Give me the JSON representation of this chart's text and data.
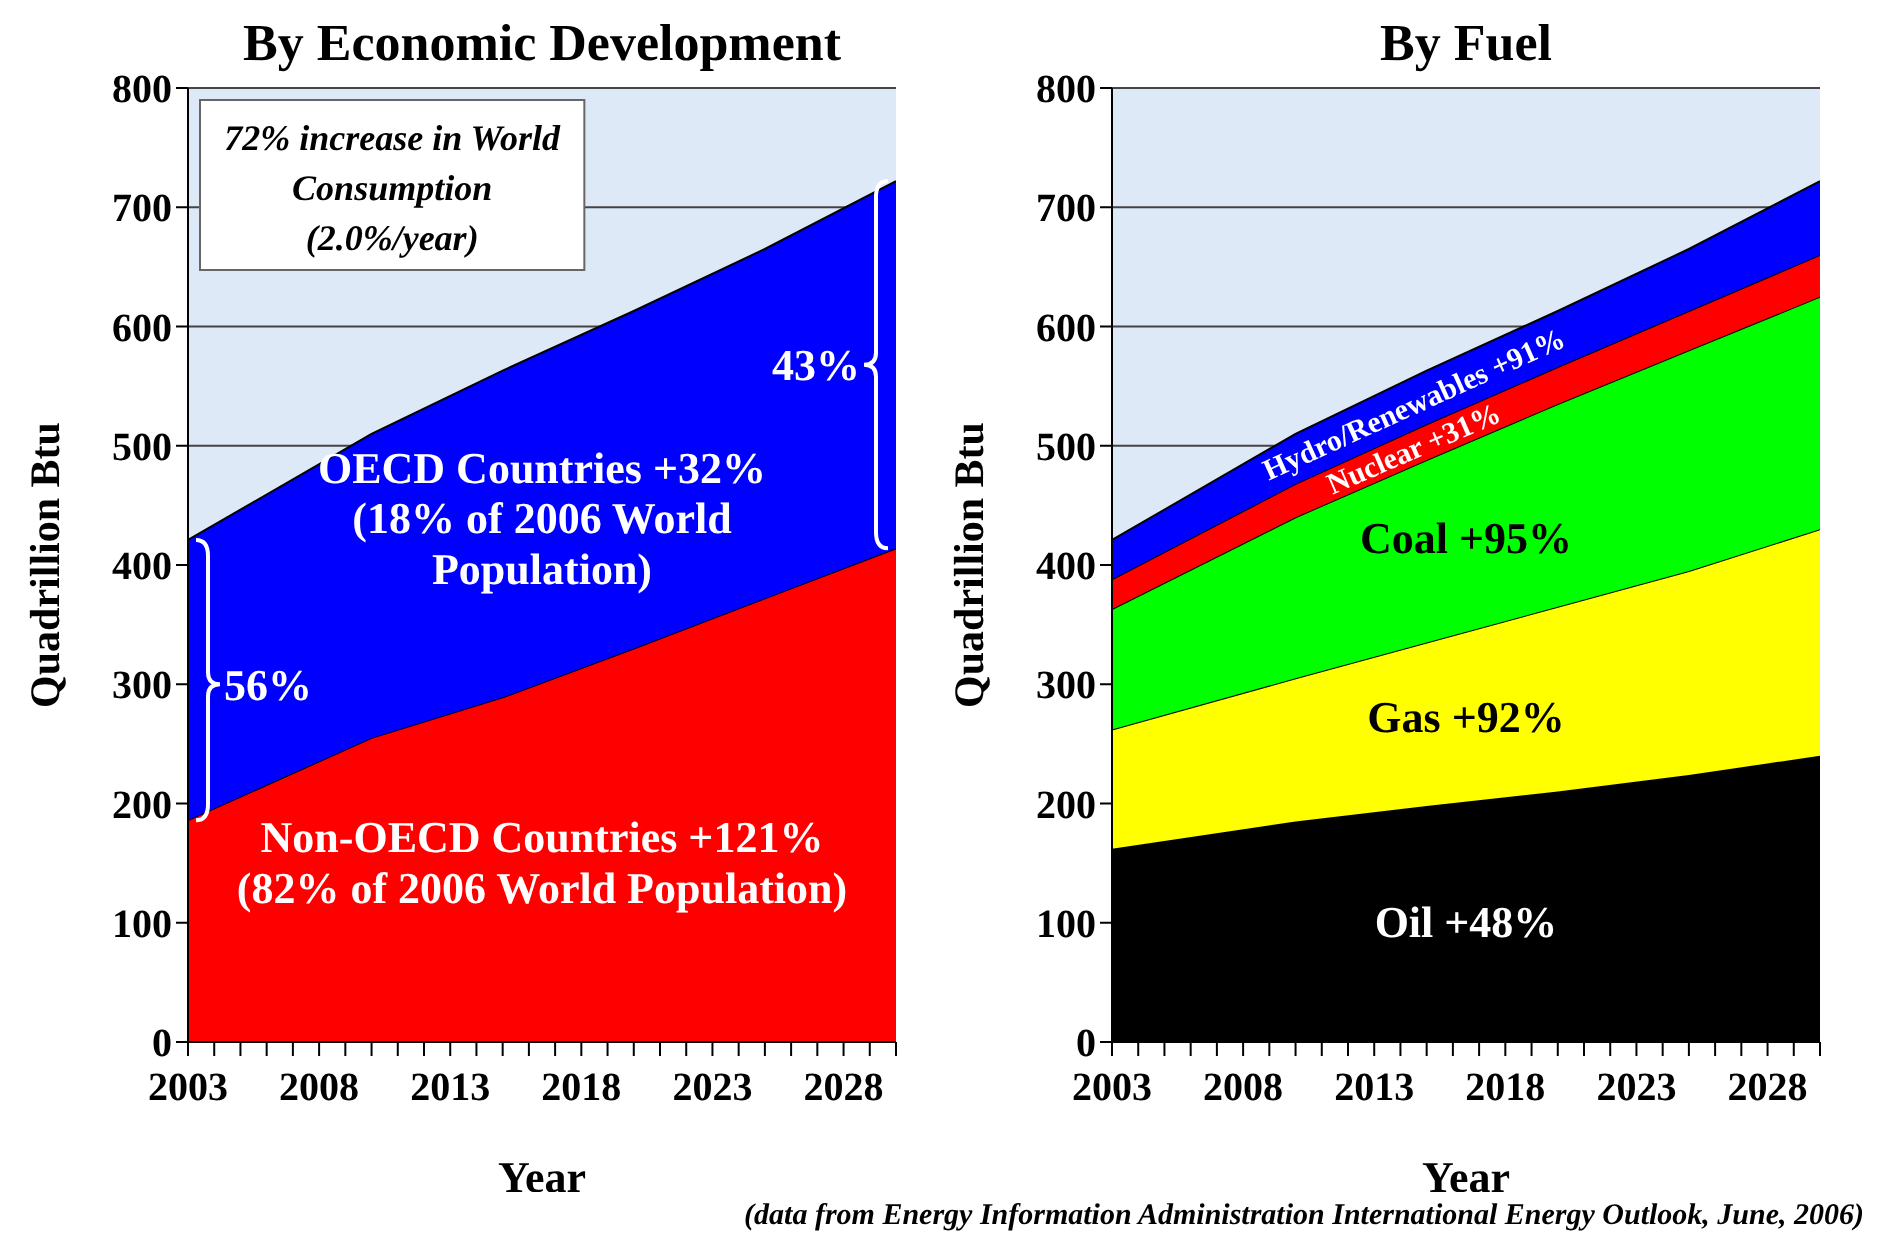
{
  "chart_data": [
    {
      "type": "area",
      "stacked": true,
      "title": "By Economic Development",
      "xlabel": "Year",
      "ylabel": "Quadrillion Btu",
      "x": [
        2003,
        2010,
        2015,
        2020,
        2025,
        2030
      ],
      "series": [
        {
          "name": "Non-OECD Countries +121% (82% of 2006 World Population)",
          "color": "#ff0000",
          "values": [
            186,
            255,
            289,
            330,
            372,
            414
          ]
        },
        {
          "name": "OECD Countries +32% (18% of 2006 World Population)",
          "color": "#0000ff",
          "values": [
            235,
            255,
            274,
            283,
            293,
            308
          ]
        }
      ],
      "xlim": [
        2003,
        2030
      ],
      "xticks": [
        2003,
        {
          "value": 2004,
          "label": null
        },
        {
          "value": 2005,
          "label": null
        },
        {
          "value": 2006,
          "label": null
        },
        {
          "value": 2007,
          "label": null
        },
        2008,
        {
          "value": 2009,
          "label": null
        },
        {
          "value": 2010,
          "label": null
        },
        {
          "value": 2011,
          "label": null
        },
        {
          "value": 2012,
          "label": null
        },
        2013,
        {
          "value": 2014,
          "label": null
        },
        {
          "value": 2015,
          "label": null
        },
        {
          "value": 2016,
          "label": null
        },
        {
          "value": 2017,
          "label": null
        },
        2018,
        {
          "value": 2019,
          "label": null
        },
        {
          "value": 2020,
          "label": null
        },
        {
          "value": 2021,
          "label": null
        },
        {
          "value": 2022,
          "label": null
        },
        2023,
        {
          "value": 2024,
          "label": null
        },
        {
          "value": 2025,
          "label": null
        },
        {
          "value": 2026,
          "label": null
        },
        {
          "value": 2027,
          "label": null
        },
        2028,
        {
          "value": 2029,
          "label": null
        },
        {
          "value": 2030,
          "label": null
        }
      ],
      "ylim": [
        0,
        800
      ],
      "yticks": [
        0,
        100,
        200,
        300,
        400,
        500,
        600,
        700,
        800
      ],
      "grid": "y",
      "legend": false,
      "annotations": [
        "72% increase in World Consumption (2.0%/year)",
        {
          "text": "56%",
          "x": 2003,
          "y": 300
        },
        {
          "text": "43%",
          "x": 2030,
          "y": 568
        }
      ]
    },
    {
      "type": "area",
      "stacked": true,
      "title": "By Fuel",
      "xlabel": "Year",
      "ylabel": "Quadrillion Btu",
      "x": [
        2003,
        2010,
        2015,
        2020,
        2025,
        2030
      ],
      "series": [
        {
          "name": "Oil +48%",
          "color": "#000000",
          "values": [
            162,
            185,
            198,
            210,
            224,
            240
          ]
        },
        {
          "name": "Gas +92%",
          "color": "#ffff00",
          "values": [
            100,
            120,
            137,
            155,
            171,
            190
          ]
        },
        {
          "name": "Coal +95%",
          "color": "#00ff00",
          "values": [
            101,
            135,
            153,
            170,
            185,
            195
          ]
        },
        {
          "name": "Nuclear +31%",
          "color": "#ff0000",
          "values": [
            25,
            28,
            30,
            31,
            33,
            35
          ]
        },
        {
          "name": "Hydro/Renewables +91%",
          "color": "#0000ff",
          "values": [
            33,
            42,
            45,
            47,
            52,
            62
          ]
        }
      ],
      "xlim": [
        2003,
        2030
      ],
      "xticks": [
        2003,
        {
          "value": 2004,
          "label": null
        },
        {
          "value": 2005,
          "label": null
        },
        {
          "value": 2006,
          "label": null
        },
        {
          "value": 2007,
          "label": null
        },
        2008,
        {
          "value": 2009,
          "label": null
        },
        {
          "value": 2010,
          "label": null
        },
        {
          "value": 2011,
          "label": null
        },
        {
          "value": 2012,
          "label": null
        },
        2013,
        {
          "value": 2014,
          "label": null
        },
        {
          "value": 2015,
          "label": null
        },
        {
          "value": 2016,
          "label": null
        },
        {
          "value": 2017,
          "label": null
        },
        2018,
        {
          "value": 2019,
          "label": null
        },
        {
          "value": 2020,
          "label": null
        },
        {
          "value": 2021,
          "label": null
        },
        {
          "value": 2022,
          "label": null
        },
        2023,
        {
          "value": 2024,
          "label": null
        },
        {
          "value": 2025,
          "label": null
        },
        {
          "value": 2026,
          "label": null
        },
        {
          "value": 2027,
          "label": null
        },
        2028,
        {
          "value": 2029,
          "label": null
        },
        {
          "value": 2030,
          "label": null
        }
      ],
      "ylim": [
        0,
        800
      ],
      "yticks": [
        0,
        100,
        200,
        300,
        400,
        500,
        600,
        700,
        800
      ],
      "grid": "y",
      "legend": false,
      "annotations": [
        "(data from Energy Information Administration International Energy Outlook, June, 2006)"
      ]
    }
  ]
}
